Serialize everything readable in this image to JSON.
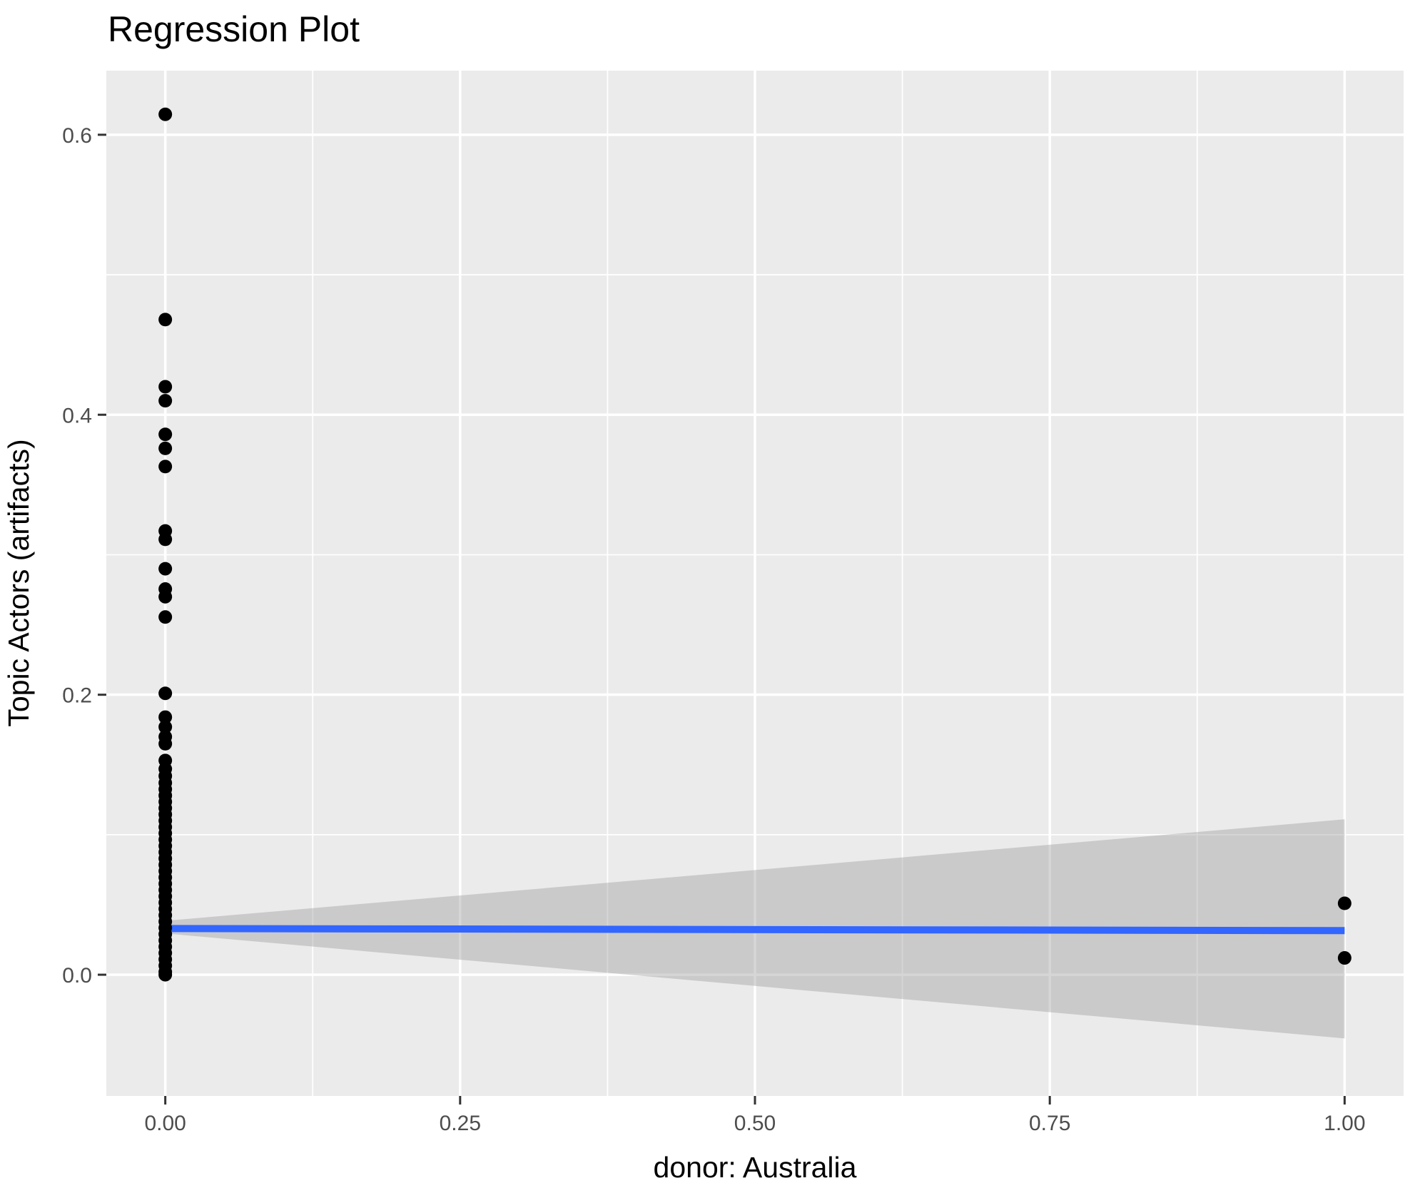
{
  "chart_data": {
    "type": "scatter",
    "title": "Regression Plot",
    "xlabel": "donor: Australia",
    "ylabel": "Topic Actors (artifacts)",
    "xlim": [
      -0.05,
      1.05
    ],
    "ylim": [
      -0.0866,
      0.6458
    ],
    "grid": true,
    "legend": "none",
    "x_ticks": {
      "values": [
        0.0,
        0.25,
        0.5,
        0.75,
        1.0
      ],
      "labels": [
        "0.00",
        "0.25",
        "0.50",
        "0.75",
        "1.00"
      ]
    },
    "y_ticks": {
      "values": [
        0.0,
        0.2,
        0.4,
        0.6
      ],
      "labels": [
        "0.0",
        "0.2",
        "0.4",
        "0.6"
      ]
    },
    "x_minor_ticks": [
      0.125,
      0.375,
      0.625,
      0.875
    ],
    "y_minor_ticks": [
      0.1,
      0.3,
      0.5
    ],
    "series": [
      {
        "name": "observations at x=0",
        "x_value": 0,
        "y_values": [
          0.6146,
          0.468,
          0.42,
          0.41,
          0.386,
          0.376,
          0.363,
          0.317,
          0.311,
          0.29,
          0.2755,
          0.27,
          0.2555,
          0.201,
          0.184,
          0.177,
          0.17,
          0.165,
          0.153,
          0.147,
          0.142,
          0.137,
          0.1325,
          0.128,
          0.1235,
          0.119,
          0.1145,
          0.11,
          0.1055,
          0.101,
          0.0965,
          0.092,
          0.0875,
          0.083,
          0.0785,
          0.074,
          0.0695,
          0.065,
          0.0605,
          0.056,
          0.0515,
          0.047,
          0.0425,
          0.038,
          0.0335,
          0.029,
          0.0245,
          0.02,
          0.0155,
          0.011,
          0.0065,
          0.002,
          0.0
        ]
      },
      {
        "name": "observations at x=1",
        "x_value": 1,
        "y_values": [
          0.051,
          0.012
        ]
      }
    ],
    "regression_line": {
      "x": [
        0,
        1
      ],
      "y": [
        0.033,
        0.0315
      ]
    },
    "confidence_band": {
      "x": [
        0,
        1
      ],
      "upper": [
        0.0385,
        0.111
      ],
      "lower": [
        0.0295,
        -0.0455
      ]
    },
    "point_radius": 9.5,
    "colors": {
      "panel_background": "#EBEBEB",
      "grid": "#FFFFFF",
      "point": "#000000",
      "line": "#3366FF",
      "ribbon": "rgba(153,153,153,0.4)",
      "tick_text": "#4D4D4D",
      "tick_mark": "#333333",
      "title_text": "#000000"
    }
  }
}
